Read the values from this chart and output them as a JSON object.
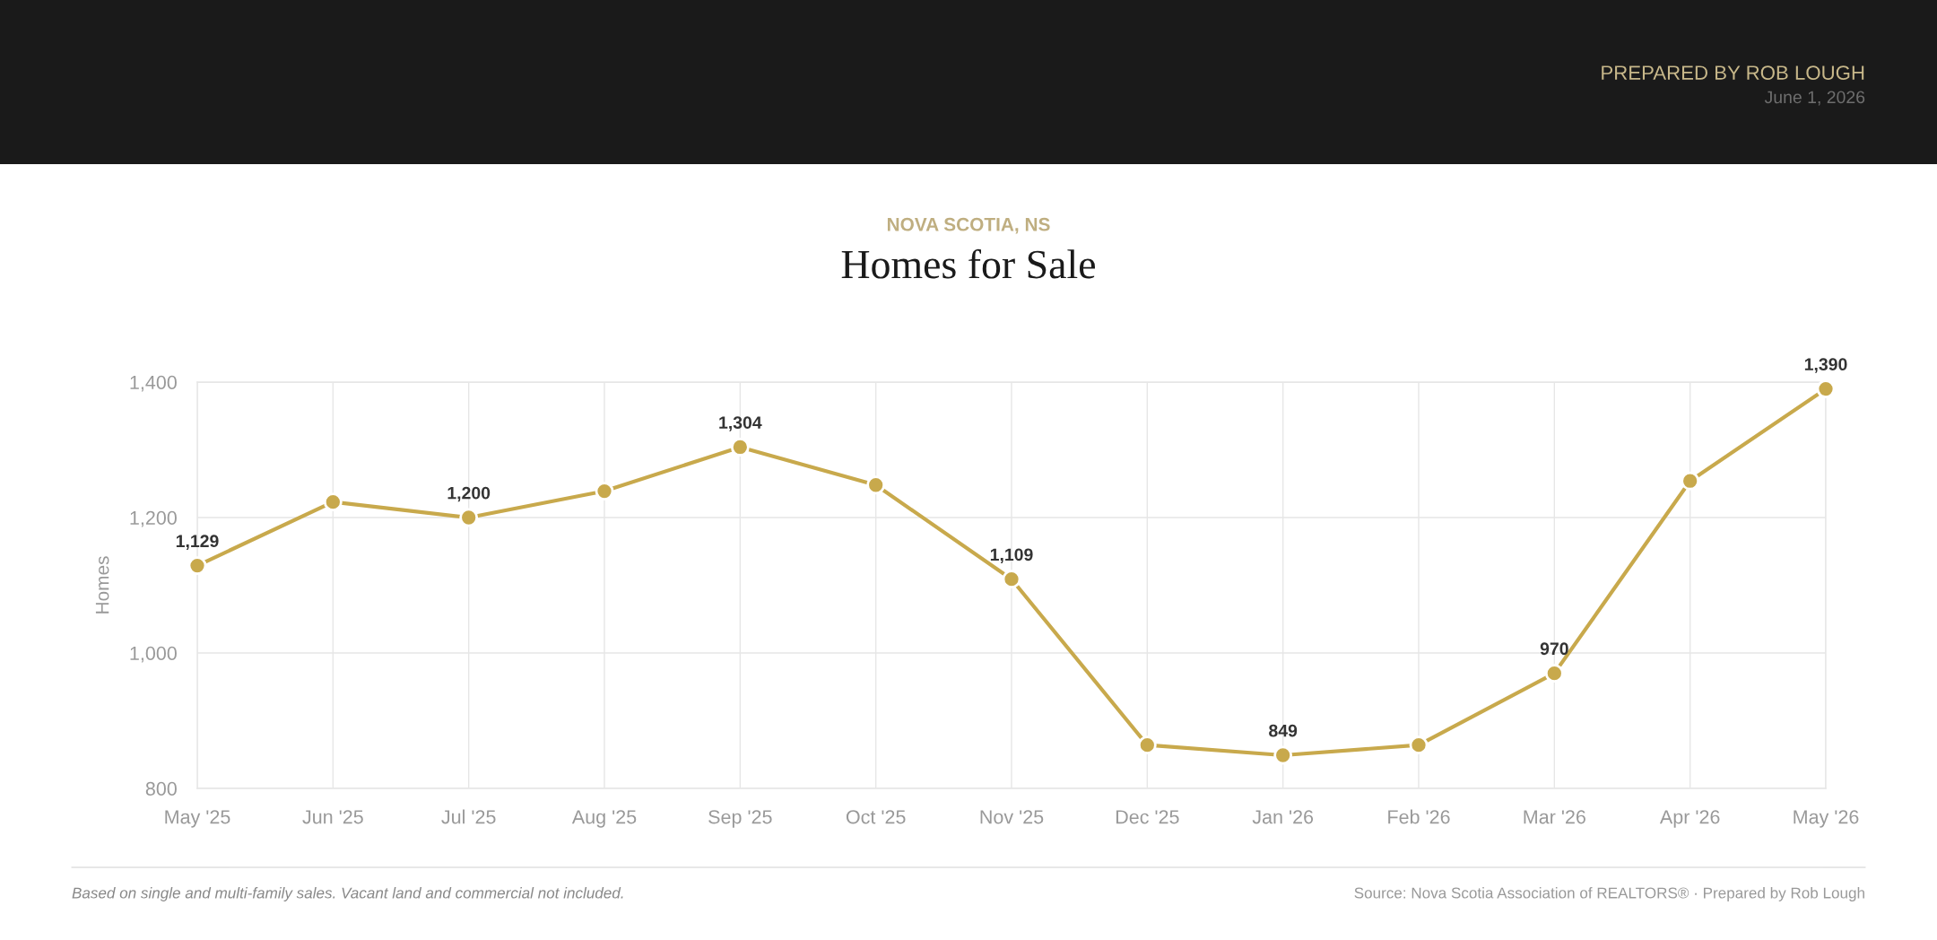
{
  "chart_data": {
    "type": "line",
    "subtitle": "NOVA SCOTIA, NS",
    "title": "Homes for Sale",
    "ylabel": "Homes",
    "categories": [
      "May '25",
      "Jun '25",
      "Jul '25",
      "Aug '25",
      "Sep '25",
      "Oct '25",
      "Nov '25",
      "Dec '25",
      "Jan '26",
      "Feb '26",
      "Mar '26",
      "Apr '26",
      "May '26"
    ],
    "values": [
      1129,
      1223,
      1200,
      1239,
      1304,
      1248,
      1109,
      864,
      849,
      864,
      970,
      1254,
      1390
    ],
    "color": "#c8a94c",
    "value_labels": [
      "1,129",
      null,
      "1,200",
      null,
      "1,304",
      null,
      "1,109",
      null,
      "849",
      null,
      "970",
      null,
      "1,390"
    ],
    "ylim": [
      800,
      1400
    ],
    "yticks": [
      800,
      {
        "value": 1000,
        "label": "1,000"
      },
      {
        "value": 1200,
        "label": "1,200"
      },
      {
        "value": 1400,
        "label": "1,400"
      }
    ],
    "grid": true,
    "marker": "circle",
    "line_style": "solid",
    "annotations": [
      "PREPARED BY ROB LOUGH",
      "June 1, 2026",
      "Based on single and multi-family sales. Vacant land and commercial not included.",
      "Source: Nova Scotia Association of REALTORS® · Prepared by Rob Lough"
    ]
  }
}
